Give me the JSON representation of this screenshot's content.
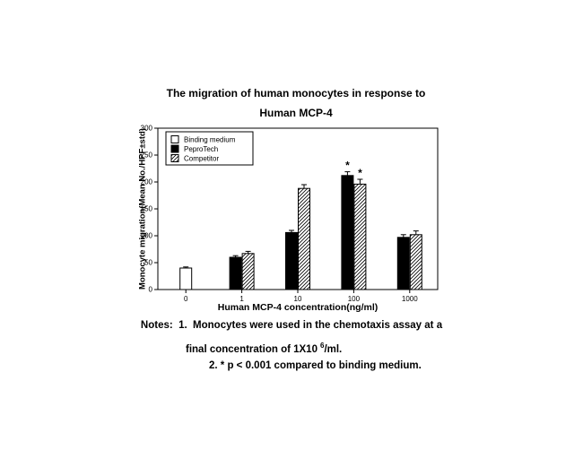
{
  "page": {
    "background": "#ffffff",
    "text_color": "#000000"
  },
  "chart_data": {
    "type": "bar",
    "title_line1": "The migration of human monocytes in response to",
    "title_line2": "Human MCP-4",
    "xlabel": "Human MCP-4 concentration(ng/ml)",
    "ylabel": "Monocyte migration(Mean No./HPF±std)",
    "ylim": [
      0,
      300
    ],
    "yticks": [
      0,
      50,
      100,
      150,
      200,
      250,
      300
    ],
    "categories": [
      "0",
      "1",
      "10",
      "100",
      "1000"
    ],
    "grid": false,
    "legend_position": "top-left-inside",
    "sig_marker": "*",
    "series": [
      {
        "name": "Binding medium",
        "style": "open",
        "fill": "#ffffff",
        "values": [
          40,
          null,
          null,
          null,
          null
        ],
        "errors": [
          2,
          null,
          null,
          null,
          null
        ],
        "sig": [
          false,
          false,
          false,
          false,
          false
        ]
      },
      {
        "name": "PeproTech",
        "style": "solid",
        "fill": "#000000",
        "values": [
          null,
          60,
          106,
          212,
          97
        ],
        "errors": [
          null,
          3,
          4,
          7,
          5
        ],
        "sig": [
          false,
          false,
          false,
          true,
          false
        ]
      },
      {
        "name": "Competitor",
        "style": "hatched",
        "fill": "diagonal-hatch",
        "values": [
          null,
          67,
          188,
          196,
          102
        ],
        "errors": [
          null,
          4,
          7,
          9,
          7
        ],
        "sig": [
          false,
          false,
          false,
          true,
          false
        ]
      }
    ]
  },
  "notes": {
    "line1": "Notes:  1.  Monocytes were used in the chemotaxis assay at a",
    "line2_prefix": "final concentration of 1X10",
    "line2_sup": "6",
    "line2_suffix": "/ml.",
    "line3": "2. * p < 0.001 compared to binding medium."
  }
}
